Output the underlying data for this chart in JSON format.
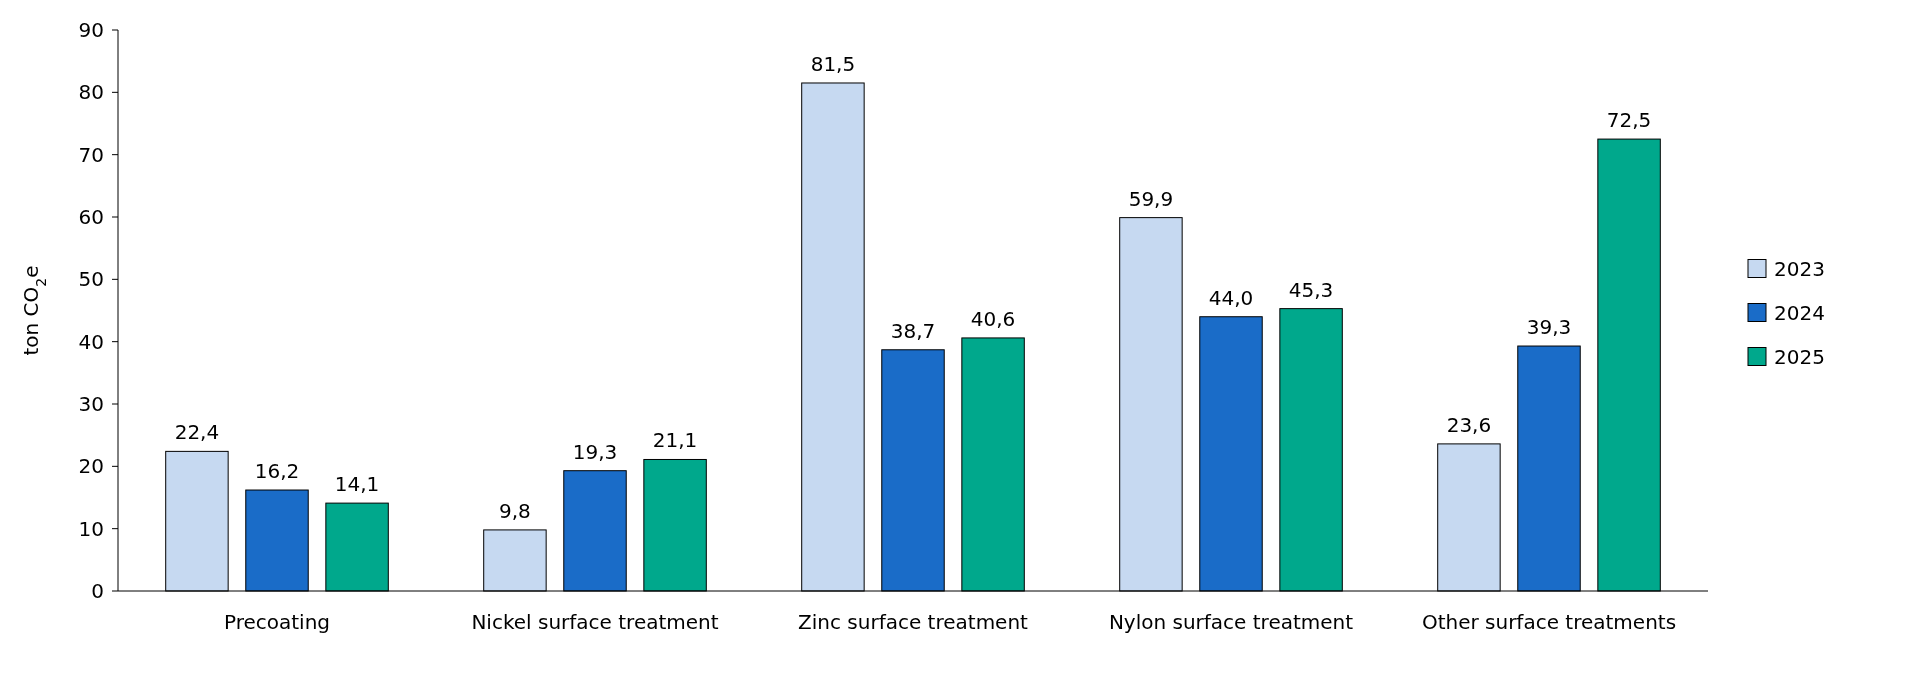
{
  "chart_data": {
    "type": "bar",
    "ylabel": "ton CO$_{2}$e",
    "categories": [
      "Precoating",
      "Nickel surface treatment",
      "Zinc surface treatment",
      "Nylon surface treatment",
      "Other surface treatments"
    ],
    "series": [
      {
        "name": "2023",
        "color": "#c6d9f1",
        "values": [
          22.4,
          9.8,
          81.5,
          59.9,
          23.6
        ],
        "value_labels": [
          "22,4",
          "9,8",
          "81,5",
          "59,9",
          "23,6"
        ]
      },
      {
        "name": "2024",
        "color": "#1a6cc8",
        "values": [
          16.2,
          19.3,
          38.7,
          44.0,
          39.3
        ],
        "value_labels": [
          "16,2",
          "19,3",
          "38,7",
          "44,0",
          "39,3"
        ]
      },
      {
        "name": "2025",
        "color": "#00a88c",
        "values": [
          14.1,
          21.1,
          40.6,
          45.3,
          72.5
        ],
        "value_labels": [
          "14,1",
          "21,1",
          "40,6",
          "45,3",
          "72,5"
        ]
      }
    ],
    "ylim": [
      0,
      90
    ],
    "yticks": [
      0,
      10,
      20,
      30,
      40,
      50,
      60,
      70,
      80,
      90
    ],
    "grid": false,
    "legend": "right"
  }
}
